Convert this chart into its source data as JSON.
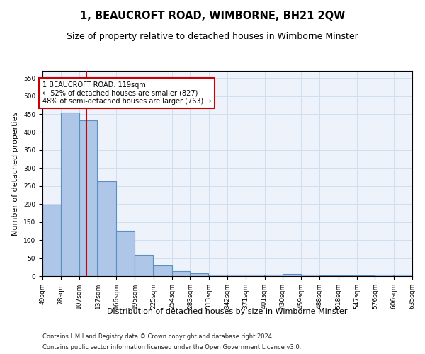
{
  "title": "1, BEAUCROFT ROAD, WIMBORNE, BH21 2QW",
  "subtitle": "Size of property relative to detached houses in Wimborne Minster",
  "xlabel": "Distribution of detached houses by size in Wimborne Minster",
  "ylabel": "Number of detached properties",
  "footer_line1": "Contains HM Land Registry data © Crown copyright and database right 2024.",
  "footer_line2": "Contains public sector information licensed under the Open Government Licence v3.0.",
  "annotation_line1": "1 BEAUCROFT ROAD: 119sqm",
  "annotation_line2": "← 52% of detached houses are smaller (827)",
  "annotation_line3": "48% of semi-detached houses are larger (763) →",
  "property_size": 119,
  "bar_left_edges": [
    49,
    78,
    107,
    137,
    166,
    195,
    225,
    254,
    283,
    313,
    342,
    371,
    401,
    430,
    459,
    488,
    518,
    547,
    576,
    606
  ],
  "bar_widths": [
    29,
    29,
    29,
    29,
    29,
    29,
    29,
    29,
    29,
    29,
    29,
    29,
    29,
    29,
    29,
    29,
    29,
    29,
    29,
    29
  ],
  "bar_heights": [
    199,
    454,
    432,
    263,
    126,
    59,
    29,
    14,
    8,
    4,
    4,
    4,
    4,
    6,
    4,
    1,
    1,
    1,
    4,
    4
  ],
  "tick_labels": [
    "49sqm",
    "78sqm",
    "107sqm",
    "137sqm",
    "166sqm",
    "195sqm",
    "225sqm",
    "254sqm",
    "283sqm",
    "313sqm",
    "342sqm",
    "371sqm",
    "401sqm",
    "430sqm",
    "459sqm",
    "488sqm",
    "518sqm",
    "547sqm",
    "576sqm",
    "606sqm",
    "635sqm"
  ],
  "ylim": [
    0,
    570
  ],
  "yticks": [
    0,
    50,
    100,
    150,
    200,
    250,
    300,
    350,
    400,
    450,
    500,
    550
  ],
  "bar_color": "#aec6e8",
  "bar_edge_color": "#5a8fc3",
  "bar_edge_width": 0.8,
  "vline_color": "#cc0000",
  "vline_x": 119,
  "grid_color": "#d0dff0",
  "background_color": "#eef2fb",
  "annotation_box_color": "#ffffff",
  "annotation_box_edge": "#cc0000",
  "title_fontsize": 10.5,
  "subtitle_fontsize": 9,
  "axis_label_fontsize": 8,
  "tick_fontsize": 6.5,
  "annotation_fontsize": 7,
  "footer_fontsize": 6
}
